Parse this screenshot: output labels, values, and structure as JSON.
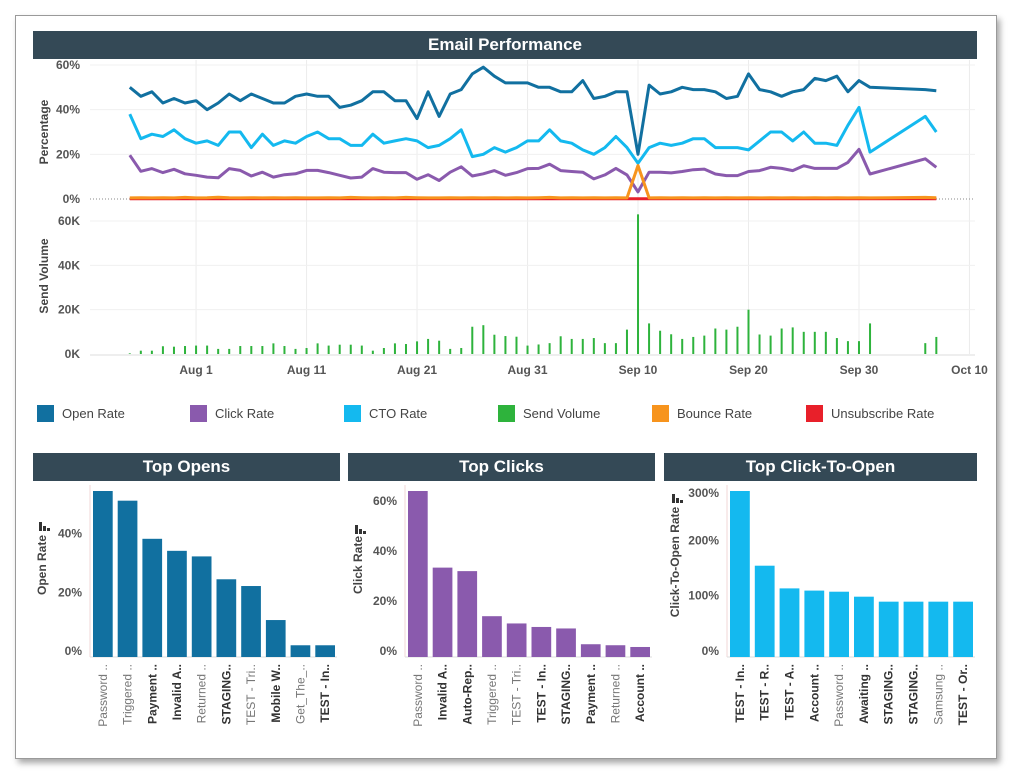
{
  "title": "Email Performance",
  "colors": {
    "header": "#344956",
    "open": "#1170a0",
    "click": "#8a5aad",
    "cto": "#14b9ef",
    "send": "#2eb33c",
    "bounce": "#f7941d",
    "unsub": "#e8202a"
  },
  "legend": [
    {
      "label": "Open Rate",
      "color": "#1170a0"
    },
    {
      "label": "Click Rate",
      "color": "#8a5aad"
    },
    {
      "label": "CTO Rate",
      "color": "#14b9ef"
    },
    {
      "label": "Send Volume",
      "color": "#2eb33c"
    },
    {
      "label": "Bounce Rate",
      "color": "#f7941d"
    },
    {
      "label": "Unsubscribe Rate",
      "color": "#e8202a"
    }
  ],
  "chart_data": [
    {
      "type": "line",
      "title": "Email Performance",
      "ylabel": "Percentage",
      "ylim": [
        0,
        60
      ],
      "yticks": [
        {
          "v": 0,
          "label": "0%"
        },
        {
          "v": 20,
          "label": "20%"
        },
        {
          "v": 40,
          "label": "40%"
        },
        {
          "v": 60,
          "label": "60%"
        }
      ],
      "x_unit": "days since Jul 26",
      "xticks": [
        {
          "v": 6,
          "label": "Aug 1"
        },
        {
          "v": 16,
          "label": "Aug 11"
        },
        {
          "v": 26,
          "label": "Aug 21"
        },
        {
          "v": 36,
          "label": "Aug 31"
        },
        {
          "v": 46,
          "label": "Sep 10"
        },
        {
          "v": 56,
          "label": "Sep 20"
        },
        {
          "v": 66,
          "label": "Sep 30"
        },
        {
          "v": 76,
          "label": "Oct 10"
        }
      ],
      "xlim": [
        -3.6,
        76.5
      ],
      "x": [
        0,
        1,
        2,
        3,
        4,
        5,
        6,
        7,
        8,
        9,
        10,
        11,
        12,
        13,
        14,
        15,
        16,
        17,
        18,
        19,
        20,
        21,
        22,
        23,
        24,
        25,
        26,
        27,
        28,
        29,
        30,
        31,
        32,
        33,
        34,
        35,
        36,
        37,
        38,
        39,
        40,
        41,
        42,
        43,
        44,
        45,
        46,
        47,
        48,
        49,
        50,
        51,
        52,
        53,
        54,
        55,
        56,
        57,
        58,
        59,
        60,
        61,
        62,
        63,
        64,
        65,
        66,
        67,
        72,
        73
      ],
      "series": [
        {
          "name": "Open Rate",
          "key": "open",
          "values": [
            50,
            46,
            48,
            43,
            45,
            43,
            44,
            40,
            43,
            47,
            44,
            47,
            45,
            43,
            43,
            46,
            47,
            46,
            46,
            41,
            42,
            44,
            48,
            48,
            44,
            44,
            36,
            48,
            37,
            47,
            49,
            56,
            59,
            55,
            52,
            52,
            52,
            50,
            50,
            48,
            48,
            53,
            45,
            46,
            48,
            48,
            20,
            51,
            47,
            48,
            50,
            49,
            49,
            48,
            45,
            46,
            56,
            49,
            48,
            46,
            48,
            49,
            54,
            53,
            55,
            48,
            53,
            50,
            49,
            48.5
          ]
        },
        {
          "name": "CTO Rate",
          "key": "cto",
          "values": [
            38,
            27,
            29,
            28,
            31,
            27,
            25,
            26,
            24,
            30,
            30,
            23,
            29,
            24,
            26,
            25,
            28,
            30,
            27,
            27,
            24,
            24,
            29,
            25,
            26,
            27,
            26,
            23,
            24,
            27,
            31,
            19,
            20,
            23,
            21,
            23,
            26,
            26,
            31,
            26,
            25,
            22,
            20,
            23,
            28,
            23,
            16,
            23,
            25,
            24,
            25,
            27,
            27,
            23,
            23,
            23,
            22,
            26,
            30,
            30,
            26,
            30,
            25,
            25,
            24,
            33,
            41,
            21,
            37,
            30
          ]
        },
        {
          "name": "Click Rate",
          "key": "click",
          "values": [
            19.6,
            12.4,
            13.6,
            11.8,
            13.3,
            11.3,
            10.6,
            9.8,
            9.5,
            13.6,
            12.8,
            10.3,
            12,
            9.8,
            10.9,
            11.3,
            12.8,
            12.8,
            11.8,
            10.6,
            9.4,
            9.8,
            13.6,
            12,
            11.8,
            11.8,
            8.8,
            10.9,
            8.3,
            12,
            14.4,
            10.3,
            11.3,
            12.7,
            10.6,
            11.8,
            13.6,
            13.7,
            15.6,
            12.7,
            12.3,
            12,
            9,
            10.8,
            13.7,
            10.8,
            3.2,
            12,
            12,
            11.7,
            12.3,
            13.1,
            13.4,
            11.2,
            10.5,
            10.5,
            12.3,
            12.7,
            14.2,
            13.7,
            12.7,
            14.9,
            13.7,
            13.7,
            13.7,
            16.4,
            22.2,
            11.2,
            18,
            14.2
          ]
        },
        {
          "name": "Bounce Rate",
          "key": "bounce",
          "values": [
            0.5,
            0.6,
            0.5,
            0.6,
            0.5,
            0.7,
            0.5,
            0.6,
            0.8,
            0.6,
            0.5,
            0.6,
            0.5,
            0.6,
            0.5,
            0.6,
            0.5,
            0.5,
            0.6,
            0.5,
            0.7,
            0.6,
            0.5,
            0.6,
            0.5,
            0.7,
            0.6,
            0.5,
            0.5,
            0.6,
            0.5,
            0.6,
            0.5,
            0.6,
            0.5,
            0.6,
            0.5,
            0.6,
            0.7,
            0.5,
            0.6,
            0.5,
            0.6,
            0.5,
            0.6,
            0.5,
            15,
            0.5,
            0.6,
            0.5,
            0.6,
            0.5,
            0.6,
            0.5,
            0.6,
            0.5,
            0.6,
            0.5,
            0.6,
            0.5,
            0.6,
            0.5,
            0.6,
            0.5,
            0.6,
            0.5,
            0.6,
            0.5,
            0.7,
            0.6
          ]
        },
        {
          "name": "Unsubscribe Rate",
          "key": "unsub",
          "values": [
            0.1,
            0.1,
            0.1,
            0.1,
            0.1,
            0.1,
            0.1,
            0.1,
            0.1,
            0.1,
            0.1,
            0.1,
            0.1,
            0.1,
            0.1,
            0.1,
            0.1,
            0.1,
            0.1,
            0.1,
            0.1,
            0.1,
            0.1,
            0.1,
            0.1,
            0.1,
            0.1,
            0.1,
            0.1,
            0.1,
            0.1,
            0.1,
            0.1,
            0.1,
            0.1,
            0.1,
            0.1,
            0.1,
            0.1,
            0.1,
            0.1,
            0.1,
            0.1,
            0.1,
            0.1,
            0.1,
            0.1,
            0.1,
            0.1,
            0.1,
            0.1,
            0.1,
            0.1,
            0.1,
            0.1,
            0.1,
            0.1,
            0.1,
            0.1,
            0.1,
            0.1,
            0.1,
            0.1,
            0.1,
            0.1,
            0.1,
            0.1,
            0.1,
            0.1,
            0.1
          ]
        }
      ]
    },
    {
      "type": "bar",
      "ylabel": "Send Volume",
      "ylim": [
        0,
        60
      ],
      "yunit": "thousands",
      "yticks": [
        {
          "v": 0,
          "label": "0K"
        },
        {
          "v": 20,
          "label": "20K"
        },
        {
          "v": 40,
          "label": "40K"
        },
        {
          "v": 60,
          "label": "60K"
        }
      ],
      "x": [
        0,
        1,
        2,
        3,
        4,
        5,
        6,
        7,
        8,
        9,
        10,
        11,
        12,
        13,
        14,
        15,
        16,
        17,
        18,
        19,
        20,
        21,
        22,
        23,
        24,
        25,
        26,
        27,
        28,
        29,
        30,
        31,
        32,
        33,
        34,
        35,
        36,
        37,
        38,
        39,
        40,
        41,
        42,
        43,
        44,
        45,
        46,
        47,
        48,
        49,
        50,
        51,
        52,
        53,
        54,
        55,
        56,
        57,
        58,
        59,
        60,
        61,
        62,
        63,
        64,
        65,
        66,
        67,
        72,
        73
      ],
      "series": [
        {
          "name": "Send Volume",
          "values": [
            0.3,
            1.5,
            1.5,
            3.5,
            3.3,
            3.6,
            3.8,
            3.8,
            2.3,
            2.3,
            3.6,
            3.6,
            3.6,
            4.8,
            3.6,
            2.3,
            2.7,
            4.8,
            3.8,
            4.2,
            4.2,
            3.8,
            1.5,
            2.7,
            4.8,
            4.5,
            5.7,
            6.8,
            6,
            2.3,
            2.7,
            12.3,
            13,
            8.7,
            8.1,
            7.8,
            3.8,
            4.3,
            4.9,
            8,
            6.8,
            6.8,
            7.2,
            4.9,
            4.9,
            11,
            63,
            13.8,
            10.5,
            8.9,
            6.8,
            7.7,
            8.3,
            11.5,
            11,
            12.3,
            20,
            8.8,
            8.3,
            11.5,
            12,
            10,
            10,
            10,
            7.2,
            5.8,
            5.8,
            13.8,
            4.9,
            7.7
          ]
        }
      ]
    },
    {
      "type": "bar",
      "title": "Top Opens",
      "ylabel": "Open Rate",
      "ylim": [
        0,
        60
      ],
      "yticks": [
        {
          "v": 0,
          "label": "0%"
        },
        {
          "v": 20,
          "label": "20%"
        },
        {
          "v": 40,
          "label": "40%"
        }
      ],
      "categories": [
        "Password ..",
        "Triggered ..",
        "Payment ..",
        "Invalid A..",
        "Returned ..",
        "STAGING..",
        "TEST - Tri..",
        "Mobile W..",
        "Get_The_..",
        "TEST - In.."
      ],
      "emphasized": [
        false,
        false,
        true,
        true,
        false,
        true,
        false,
        true,
        false,
        true
      ],
      "values": [
        56.6,
        53.3,
        40.3,
        36.2,
        34.3,
        26.5,
        24.2,
        12.6,
        4,
        4
      ]
    },
    {
      "type": "bar",
      "title": "Top Clicks",
      "ylabel": "Click Rate",
      "ylim": [
        0,
        70
      ],
      "yticks": [
        {
          "v": 0,
          "label": "0%"
        },
        {
          "v": 20,
          "label": "20%"
        },
        {
          "v": 40,
          "label": "40%"
        },
        {
          "v": 60,
          "label": "60%"
        }
      ],
      "categories": [
        "Password ..",
        "Invalid A..",
        "Auto-Rep..",
        "Triggered ..",
        "TEST - Tri..",
        "TEST - In..",
        "STAGING..",
        "Payment ..",
        "Returned ..",
        "Account .."
      ],
      "emphasized": [
        false,
        true,
        true,
        false,
        false,
        true,
        true,
        true,
        false,
        true
      ],
      "values": [
        66.3,
        35.7,
        34.3,
        16.3,
        13.4,
        12,
        11.4,
        5.1,
        4.7,
        4
      ]
    },
    {
      "type": "bar",
      "title": "Top Click-To-Open",
      "ylabel": "Click-To-Open Rate",
      "ylim": [
        0,
        300
      ],
      "yticks": [
        {
          "v": 0,
          "label": "0%"
        },
        {
          "v": 100,
          "label": "100%"
        },
        {
          "v": 200,
          "label": "200%"
        },
        {
          "v": 300,
          "label": "300%"
        }
      ],
      "categories": [
        "TEST - In..",
        "TEST - R..",
        "TEST - A..",
        "Account ..",
        "Password ..",
        "Awaiting ..",
        "STAGING..",
        "STAGING..",
        "Samsung ..",
        "TEST - Or.."
      ],
      "emphasized": [
        true,
        true,
        true,
        true,
        false,
        true,
        true,
        true,
        false,
        true
      ],
      "values": [
        300,
        165,
        124,
        120,
        118,
        109,
        100,
        100,
        100,
        100
      ]
    }
  ]
}
